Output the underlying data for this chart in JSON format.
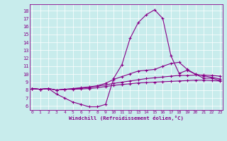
{
  "xlabel": "Windchill (Refroidissement éolien,°C)",
  "bg_color": "#c8ecec",
  "line_color": "#880088",
  "x_ticks": [
    0,
    1,
    2,
    3,
    4,
    5,
    6,
    7,
    8,
    9,
    10,
    11,
    12,
    13,
    14,
    15,
    16,
    17,
    18,
    19,
    20,
    21,
    22,
    23
  ],
  "y_ticks": [
    6,
    7,
    8,
    9,
    10,
    11,
    12,
    13,
    14,
    15,
    16,
    17,
    18
  ],
  "ylim": [
    5.5,
    18.8
  ],
  "xlim": [
    -0.3,
    23.3
  ],
  "series": [
    [
      8.2,
      8.1,
      8.2,
      7.5,
      7.0,
      6.5,
      6.2,
      5.9,
      5.9,
      6.2,
      9.5,
      11.2,
      14.5,
      16.5,
      17.5,
      18.1,
      17.0,
      12.3,
      10.1,
      10.5,
      10.0,
      9.5,
      9.5,
      9.2
    ],
    [
      8.2,
      8.1,
      8.2,
      8.0,
      8.1,
      8.2,
      8.3,
      8.4,
      8.55,
      8.85,
      9.35,
      9.7,
      10.05,
      10.4,
      10.5,
      10.6,
      11.0,
      11.35,
      11.5,
      10.6,
      10.0,
      9.8,
      9.6,
      9.4
    ],
    [
      8.2,
      8.1,
      8.2,
      8.0,
      8.1,
      8.15,
      8.25,
      8.35,
      8.5,
      8.65,
      8.85,
      9.0,
      9.15,
      9.3,
      9.45,
      9.55,
      9.65,
      9.75,
      9.85,
      9.85,
      9.9,
      9.9,
      9.85,
      9.75
    ],
    [
      8.2,
      8.1,
      8.2,
      8.0,
      8.1,
      8.1,
      8.15,
      8.2,
      8.3,
      8.45,
      8.6,
      8.7,
      8.8,
      8.9,
      8.95,
      9.0,
      9.05,
      9.1,
      9.15,
      9.2,
      9.25,
      9.25,
      9.2,
      9.15
    ]
  ]
}
